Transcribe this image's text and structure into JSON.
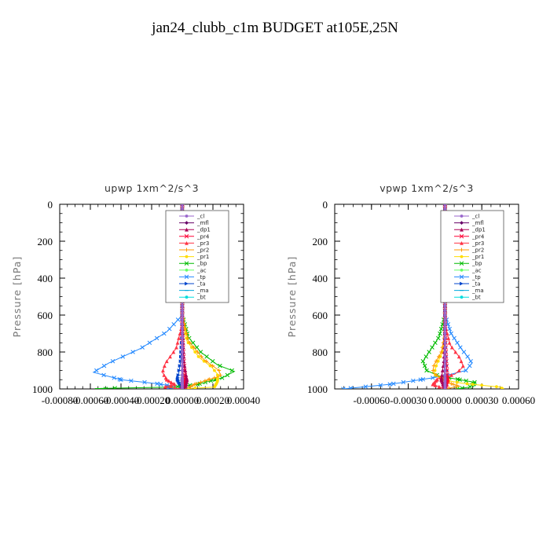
{
  "figure": {
    "title": "jan24_clubb_c1m  BUDGET at105E,25N"
  },
  "legend_entries": [
    "_cl",
    "_mfl",
    "_dp1",
    "_pr4",
    "_pr3",
    "_pr2",
    "_pr1",
    "_bp",
    "_ac",
    "_tp",
    "_ta",
    "_ma",
    "_bt"
  ],
  "series_colors": {
    "_cl": "#9966cc",
    "_mfl": "#660066",
    "_dp1": "#aa0055",
    "_pr4": "#ff0033",
    "_pr3": "#ff3344",
    "_pr2": "#ff9900",
    "_pr1": "#ffdd00",
    "_bp": "#00bb00",
    "_ac": "#66ff66",
    "_tp": "#2288ff",
    "_ta": "#0044cc",
    "_ma": "#00aadd",
    "_bt": "#00dddd"
  },
  "chart_data": [
    {
      "type": "line",
      "title": "upwp   1xm^2/s^3",
      "ylabel": "Pressure [hPa]",
      "xlabel": "",
      "xlim": [
        -0.0008,
        0.0004
      ],
      "ylim": [
        1000,
        0
      ],
      "y_inverted": true,
      "xticks": [
        -0.0008,
        -0.0006,
        -0.0004,
        -0.0002,
        0.0,
        0.0002,
        0.0004
      ],
      "xtick_labels": [
        "-0.00080",
        "-0.00060",
        "-0.00040",
        "-0.00020",
        "0.00000",
        "0.00020",
        "0.00040"
      ],
      "yticks": [
        0,
        200,
        400,
        600,
        800,
        1000
      ],
      "ytick_labels": [
        "0",
        "200",
        "400",
        "600",
        "800",
        "1000"
      ],
      "legend_placement": "top-right",
      "series": [
        {
          "name": "_cl",
          "points": [
            [
              0,
              0
            ],
            [
              0,
              500
            ],
            [
              0,
              900
            ],
            [
              0,
              1000
            ]
          ]
        },
        {
          "name": "_mfl",
          "points": [
            [
              0,
              0
            ],
            [
              0,
              500
            ],
            [
              0,
              900
            ],
            [
              0,
              1000
            ]
          ]
        },
        {
          "name": "_dp1",
          "points": [
            [
              0,
              0
            ],
            [
              0,
              600
            ],
            [
              1e-05,
              850
            ],
            [
              3e-05,
              950
            ],
            [
              2e-05,
              990
            ],
            [
              0,
              1000
            ]
          ]
        },
        {
          "name": "_pr4",
          "points": [
            [
              0,
              0
            ],
            [
              0,
              700
            ],
            [
              1e-05,
              850
            ],
            [
              2e-05,
              950
            ],
            [
              0,
              1000
            ]
          ]
        },
        {
          "name": "_pr3",
          "points": [
            [
              0,
              0
            ],
            [
              0,
              650
            ],
            [
              -4e-05,
              780
            ],
            [
              -0.00011,
              860
            ],
            [
              -0.00013,
              910
            ],
            [
              -0.0001,
              950
            ],
            [
              -5e-05,
              975
            ],
            [
              -0.00012,
              990
            ],
            [
              0,
              1000
            ]
          ]
        },
        {
          "name": "_pr2",
          "points": [
            [
              0,
              0
            ],
            [
              0,
              600
            ],
            [
              4e-05,
              740
            ],
            [
              0.00014,
              840
            ],
            [
              0.00024,
              900
            ],
            [
              0.00025,
              930
            ],
            [
              0.00017,
              950
            ],
            [
              8e-05,
              975
            ],
            [
              5e-05,
              990
            ],
            [
              0,
              1000
            ]
          ]
        },
        {
          "name": "_pr1",
          "points": [
            [
              0,
              0
            ],
            [
              0,
              600
            ],
            [
              3e-05,
              740
            ],
            [
              0.00011,
              830
            ],
            [
              0.00019,
              880
            ],
            [
              0.00023,
              920
            ],
            [
              0.00023,
              960
            ],
            [
              0.00021,
              990
            ],
            [
              0,
              1000
            ]
          ]
        },
        {
          "name": "_bp",
          "points": [
            [
              0,
              0
            ],
            [
              0,
              600
            ],
            [
              4e-05,
              720
            ],
            [
              0.00012,
              800
            ],
            [
              0.00023,
              870
            ],
            [
              0.00034,
              905
            ],
            [
              0.00026,
              940
            ],
            [
              0.0001,
              975
            ],
            [
              -5e-05,
              990
            ],
            [
              -0.00057,
              998
            ],
            [
              -0.0005,
              1000
            ]
          ]
        },
        {
          "name": "_ac",
          "points": [
            [
              0,
              0
            ],
            [
              0,
              1000
            ]
          ]
        },
        {
          "name": "_tp",
          "points": [
            [
              0,
              0
            ],
            [
              0,
              600
            ],
            [
              -0.0001,
              690
            ],
            [
              -0.00027,
              780
            ],
            [
              -0.00048,
              860
            ],
            [
              -0.00058,
              910
            ],
            [
              -0.0004,
              950
            ],
            [
              -0.00018,
              970
            ],
            [
              -6e-05,
              985
            ],
            [
              -0.00012,
              995
            ],
            [
              0,
              1000
            ]
          ]
        },
        {
          "name": "_ta",
          "points": [
            [
              0,
              0
            ],
            [
              0,
              700
            ],
            [
              -1e-05,
              850
            ],
            [
              -3e-05,
              950
            ],
            [
              0,
              1000
            ]
          ]
        },
        {
          "name": "_ma",
          "points": [
            [
              0,
              0
            ],
            [
              0,
              1000
            ]
          ]
        },
        {
          "name": "_bt",
          "points": [
            [
              0,
              0
            ],
            [
              0,
              1000
            ]
          ]
        }
      ]
    },
    {
      "type": "line",
      "title": "vpwp   1xm^2/s^3",
      "ylabel": "Pressure [hPa]",
      "xlabel": "",
      "xlim": [
        -0.0009,
        0.0006
      ],
      "ylim": [
        1000,
        0
      ],
      "y_inverted": true,
      "xticks": [
        -0.0006,
        -0.0003,
        0.0,
        0.0003,
        0.0006
      ],
      "xtick_labels": [
        "-0.00060",
        "-0.00030",
        "0.00000",
        "0.00030",
        "0.00060"
      ],
      "yticks": [
        0,
        200,
        400,
        600,
        800,
        1000
      ],
      "ytick_labels": [
        "0",
        "200",
        "400",
        "600",
        "800",
        "1000"
      ],
      "legend_placement": "top-right",
      "series": [
        {
          "name": "_cl",
          "points": [
            [
              0,
              0
            ],
            [
              0,
              500
            ],
            [
              0,
              900
            ],
            [
              0,
              1000
            ]
          ]
        },
        {
          "name": "_mfl",
          "points": [
            [
              0,
              0
            ],
            [
              0,
              500
            ],
            [
              0,
              900
            ],
            [
              0,
              1000
            ]
          ]
        },
        {
          "name": "_dp1",
          "points": [
            [
              0,
              0
            ],
            [
              0,
              650
            ],
            [
              -1e-05,
              850
            ],
            [
              -3e-05,
              950
            ],
            [
              0,
              1000
            ]
          ]
        },
        {
          "name": "_pr4",
          "points": [
            [
              0,
              0
            ],
            [
              0,
              700
            ],
            [
              1e-05,
              850
            ],
            [
              2e-05,
              950
            ],
            [
              0,
              1000
            ]
          ]
        },
        {
          "name": "_pr3",
          "points": [
            [
              0,
              0
            ],
            [
              0,
              650
            ],
            [
              4e-05,
              760
            ],
            [
              0.00012,
              830
            ],
            [
              0.00015,
              880
            ],
            [
              8e-05,
              920
            ],
            [
              -6e-05,
              945
            ],
            [
              -0.0001,
              975
            ],
            [
              0,
              1000
            ]
          ]
        },
        {
          "name": "_pr2",
          "points": [
            [
              0,
              0
            ],
            [
              0,
              700
            ],
            [
              -3e-05,
              800
            ],
            [
              -9e-05,
              870
            ],
            [
              -0.0001,
              910
            ],
            [
              -4e-05,
              940
            ],
            [
              4e-05,
              970
            ],
            [
              0.00012,
              985
            ],
            [
              0,
              1000
            ]
          ]
        },
        {
          "name": "_pr1",
          "points": [
            [
              0,
              0
            ],
            [
              0,
              700
            ],
            [
              -2e-05,
              800
            ],
            [
              -7e-05,
              870
            ],
            [
              -9e-05,
              920
            ],
            [
              -2e-05,
              950
            ],
            [
              0.00015,
              970
            ],
            [
              0.00045,
              990
            ],
            [
              0.00047,
              1000
            ]
          ]
        },
        {
          "name": "_bp",
          "points": [
            [
              0,
              0
            ],
            [
              0,
              600
            ],
            [
              -5e-05,
              720
            ],
            [
              -0.00012,
              790
            ],
            [
              -0.00018,
              850
            ],
            [
              -0.00015,
              900
            ],
            [
              -5e-05,
              930
            ],
            [
              0.00012,
              950
            ],
            [
              0.00025,
              965
            ],
            [
              0.0002,
              990
            ],
            [
              0.0001,
              1000
            ]
          ]
        },
        {
          "name": "_ac",
          "points": [
            [
              0,
              0
            ],
            [
              0,
              1000
            ]
          ]
        },
        {
          "name": "_tp",
          "points": [
            [
              0,
              0
            ],
            [
              0,
              600
            ],
            [
              5e-05,
              700
            ],
            [
              0.00013,
              780
            ],
            [
              0.00019,
              830
            ],
            [
              0.00022,
              860
            ],
            [
              0.00017,
              900
            ],
            [
              5e-05,
              920
            ],
            [
              -0.0001,
              940
            ],
            [
              -0.00045,
              975
            ],
            [
              -0.0008,
              998
            ],
            [
              -0.00083,
              1000
            ]
          ]
        },
        {
          "name": "_ta",
          "points": [
            [
              0,
              0
            ],
            [
              0,
              700
            ],
            [
              1e-05,
              850
            ],
            [
              2e-05,
              950
            ],
            [
              0,
              1000
            ]
          ]
        },
        {
          "name": "_ma",
          "points": [
            [
              0,
              0
            ],
            [
              0,
              1000
            ]
          ]
        },
        {
          "name": "_bt",
          "points": [
            [
              0,
              0
            ],
            [
              0,
              1000
            ]
          ]
        }
      ]
    }
  ]
}
